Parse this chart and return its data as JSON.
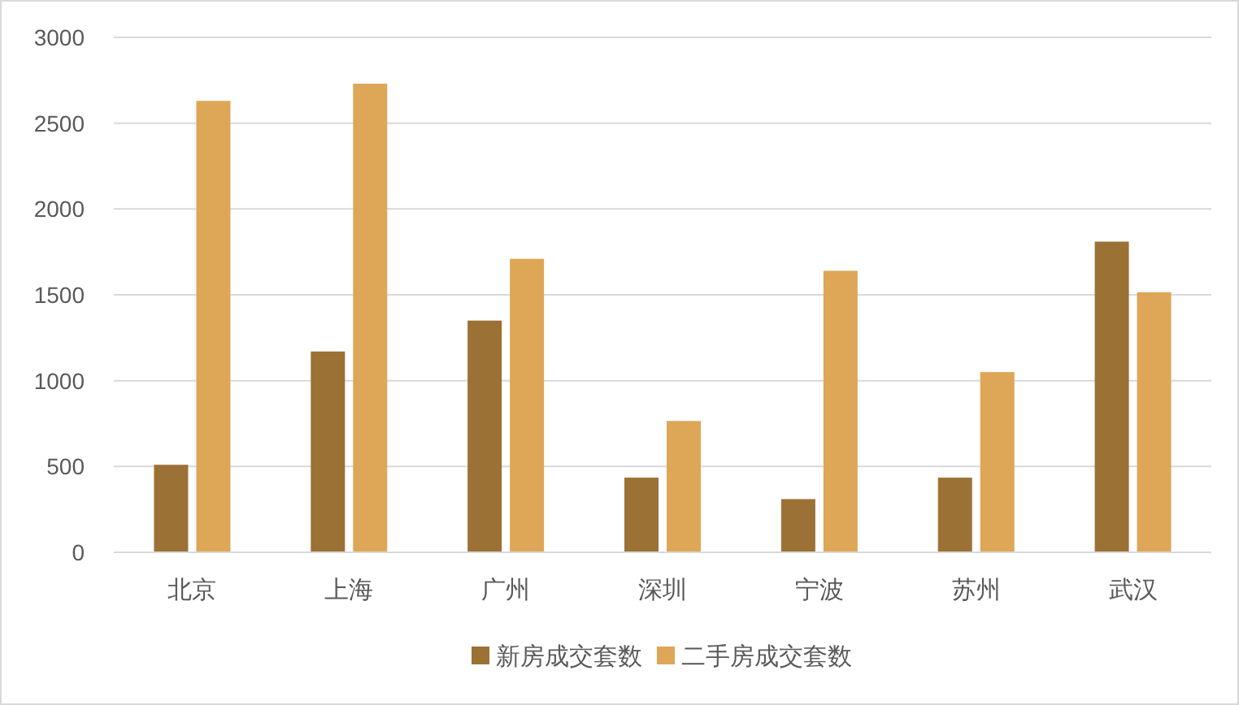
{
  "chart_data": {
    "type": "bar",
    "categories": [
      "北京",
      "上海",
      "广州",
      "深圳",
      "宁波",
      "苏州",
      "武汉"
    ],
    "series": [
      {
        "name": "新房成交套数",
        "color": "#9c7135",
        "values": [
          510,
          1170,
          1350,
          435,
          310,
          435,
          1810
        ]
      },
      {
        "name": "二手房成交套数",
        "color": "#dea657",
        "values": [
          2630,
          2730,
          1710,
          765,
          1640,
          1050,
          1515
        ]
      }
    ],
    "ylim": [
      0,
      3000
    ],
    "yticks": [
      0,
      500,
      1000,
      1500,
      2000,
      2500,
      3000
    ],
    "grid": "y",
    "legend": "bottom"
  }
}
